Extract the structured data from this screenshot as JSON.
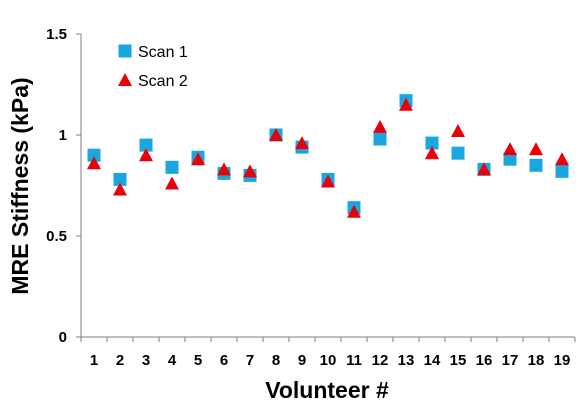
{
  "chart_data": {
    "type": "scatter",
    "xlabel": "Volunteer #",
    "ylabel": "MRE Stiffness (kPa)",
    "x": [
      1,
      2,
      3,
      4,
      5,
      6,
      7,
      8,
      9,
      10,
      11,
      12,
      13,
      14,
      15,
      16,
      17,
      18,
      19
    ],
    "ylim": [
      0,
      1.5
    ],
    "yticks": [
      "0",
      "0.5",
      "1",
      "1.5"
    ],
    "grid": false,
    "legend_position": "top-left",
    "series": [
      {
        "name": "Scan 1",
        "marker": "square",
        "color": "#1aa7e0",
        "values": [
          0.9,
          0.78,
          0.95,
          0.84,
          0.89,
          0.81,
          0.8,
          1.0,
          0.94,
          0.78,
          0.64,
          0.98,
          1.17,
          0.96,
          0.91,
          0.83,
          0.88,
          0.85,
          0.82
        ]
      },
      {
        "name": "Scan 2",
        "marker": "triangle",
        "color": "#e8000b",
        "values": [
          0.86,
          0.73,
          0.9,
          0.76,
          0.88,
          0.83,
          0.82,
          1.0,
          0.96,
          0.77,
          0.62,
          1.04,
          1.15,
          0.91,
          1.02,
          0.83,
          0.93,
          0.93,
          0.88
        ]
      }
    ]
  }
}
